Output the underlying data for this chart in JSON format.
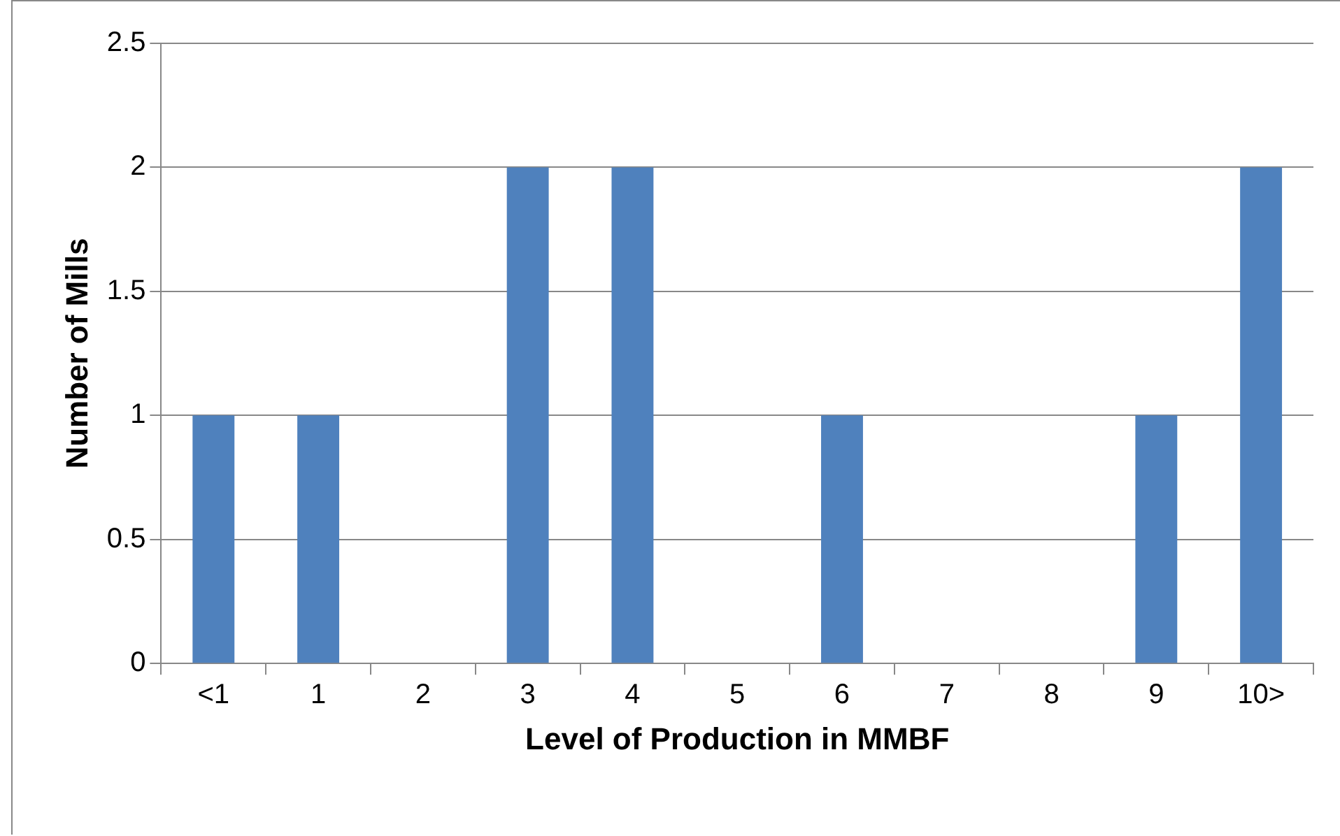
{
  "chart_data": {
    "type": "bar",
    "xlabel": "Level of Production in MMBF",
    "ylabel": "Number of Mills",
    "categories": [
      "<1",
      "1",
      "2",
      "3",
      "4",
      "5",
      "6",
      "7",
      "8",
      "9",
      "10>"
    ],
    "values": [
      1,
      1,
      0,
      2,
      2,
      0,
      1,
      0,
      0,
      1,
      2
    ],
    "color": "#4f81bd",
    "ylim": [
      0,
      2.5
    ],
    "yticks": [
      0,
      0.5,
      1,
      1.5,
      2,
      2.5
    ],
    "grid": "y",
    "legend": false
  }
}
